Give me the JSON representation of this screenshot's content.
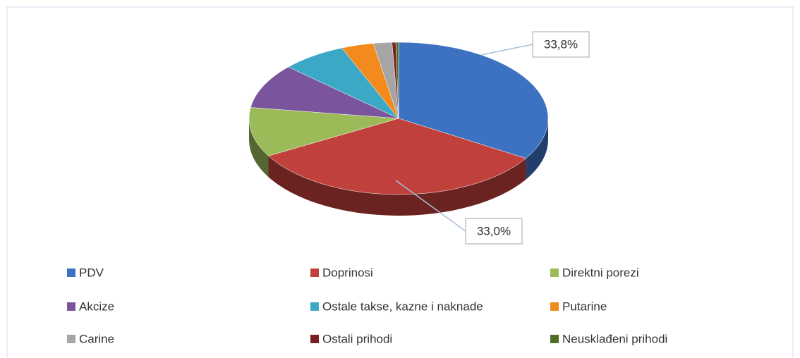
{
  "chart_data": {
    "type": "pie",
    "categories": [
      "PDV",
      "Doprinosi",
      "Direktni porezi",
      "Akcize",
      "Ostale takse, kazne i naknade",
      "Putarine",
      "Carine",
      "Ostali prihodi",
      "Neusklađeni prihodi"
    ],
    "values": [
      33.8,
      33.0,
      10.5,
      9.5,
      7,
      3.5,
      2,
      0.4,
      0.3
    ],
    "value_labels": [
      "33,8%",
      "33,0%",
      null,
      null,
      null,
      null,
      null,
      null,
      null
    ],
    "colors": [
      "#3d72c2",
      "#c0403c",
      "#9bbb59",
      "#7a559e",
      "#3ba9c6",
      "#f28a1e",
      "#a5a5a5",
      "#7a1f1f",
      "#4f6f28"
    ],
    "legend": "bottom"
  }
}
